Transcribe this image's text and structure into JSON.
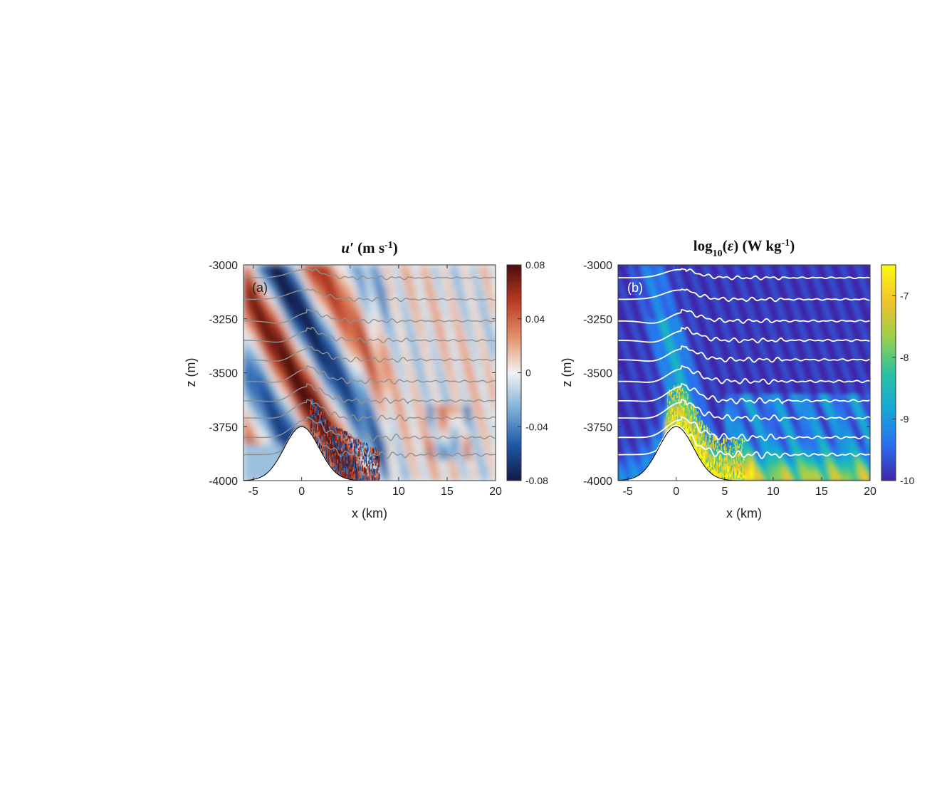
{
  "chart_data": [
    {
      "type": "heatmap",
      "panel_label": "(a)",
      "title_parts": [
        "u′",
        " (m s",
        "-1",
        ")"
      ],
      "xlabel": "x (km)",
      "ylabel": "z (m)",
      "xlim": [
        -6,
        20
      ],
      "ylim": [
        -4000,
        -3000
      ],
      "xticks": [
        -5,
        0,
        5,
        10,
        15,
        20
      ],
      "yticks": [
        -4000,
        -3750,
        -3500,
        -3250,
        -3000
      ],
      "colorbar": {
        "ticks": [
          0.08,
          0.04,
          0,
          -0.04,
          -0.08
        ],
        "range": [
          -0.08,
          0.08
        ],
        "colormap": "red-white-blue diverging",
        "colors": [
          "#121a45",
          "#1f58a8",
          "#7fb0d8",
          "#f2f2f2",
          "#e3906a",
          "#b93a22",
          "#4a0d0d"
        ]
      },
      "contour_color": "#909090",
      "features": {
        "seamount_peak_x_km": 0,
        "seamount_peak_z_m": -3750,
        "seamount_half_width_km": 2.5
      }
    },
    {
      "type": "heatmap",
      "panel_label": "(b)",
      "title_parts": [
        "log",
        "10",
        "(",
        "ε",
        ") (W kg",
        "-1",
        ")"
      ],
      "xlabel": "x (km)",
      "ylabel": "z (m)",
      "xlim": [
        -6,
        20
      ],
      "ylim": [
        -4000,
        -3000
      ],
      "xticks": [
        -5,
        0,
        5,
        10,
        15,
        20
      ],
      "yticks": [
        -4000,
        -3750,
        -3500,
        -3250,
        -3000
      ],
      "colorbar": {
        "ticks": [
          -7,
          -8,
          -9,
          -10
        ],
        "range": [
          -10,
          -6.5
        ],
        "colormap": "parula",
        "colors": [
          "#3e26a8",
          "#2c6ff0",
          "#13a8d6",
          "#2cc1a0",
          "#9bd04a",
          "#f5c22e",
          "#f9fb0e"
        ]
      },
      "contour_color": "#ffffff",
      "features": {
        "seamount_peak_x_km": 0,
        "seamount_peak_z_m": -3750,
        "seamount_half_width_km": 2.5
      }
    }
  ]
}
